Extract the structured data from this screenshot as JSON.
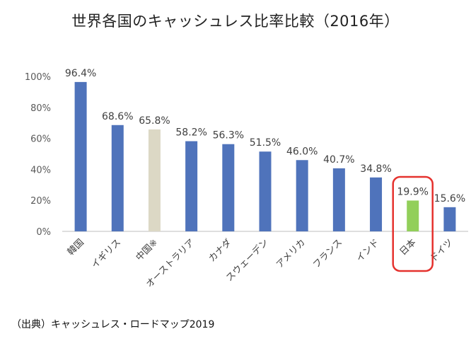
{
  "chart_data": {
    "type": "bar",
    "title": "世界各国のキャッシュレス比率比較（2016年）",
    "categories": [
      "韓国",
      "イギリス",
      "中国※",
      "オーストラリア",
      "カナダ",
      "スウェーデン",
      "アメリカ",
      "フランス",
      "インド",
      "日本",
      "ドイツ"
    ],
    "values": [
      96.4,
      68.6,
      65.8,
      58.2,
      56.3,
      51.5,
      46.0,
      40.7,
      34.8,
      19.9,
      15.6
    ],
    "value_labels": [
      "96.4%",
      "68.6%",
      "65.8%",
      "58.2%",
      "56.3%",
      "51.5%",
      "46.0%",
      "40.7%",
      "34.8%",
      "19.9%",
      "15.6%"
    ],
    "y_ticks": [
      0,
      20,
      40,
      60,
      80,
      100
    ],
    "y_tick_labels": [
      "0%",
      "20%",
      "40%",
      "60%",
      "80%",
      "100%"
    ],
    "ylim": [
      0,
      100
    ],
    "xlabel": "",
    "ylabel": "",
    "grid": false,
    "legend": "none",
    "bar_colors": [
      "#4f73bb",
      "#4f73bb",
      "#dcd8c5",
      "#4f73bb",
      "#4f73bb",
      "#4f73bb",
      "#4f73bb",
      "#4f73bb",
      "#4f73bb",
      "#92cf5a",
      "#4f73bb"
    ],
    "highlight": {
      "category": "日本",
      "outline_color": "#e5322e"
    }
  },
  "source_note": "（出典）キャッシュレス・ロードマップ2019"
}
